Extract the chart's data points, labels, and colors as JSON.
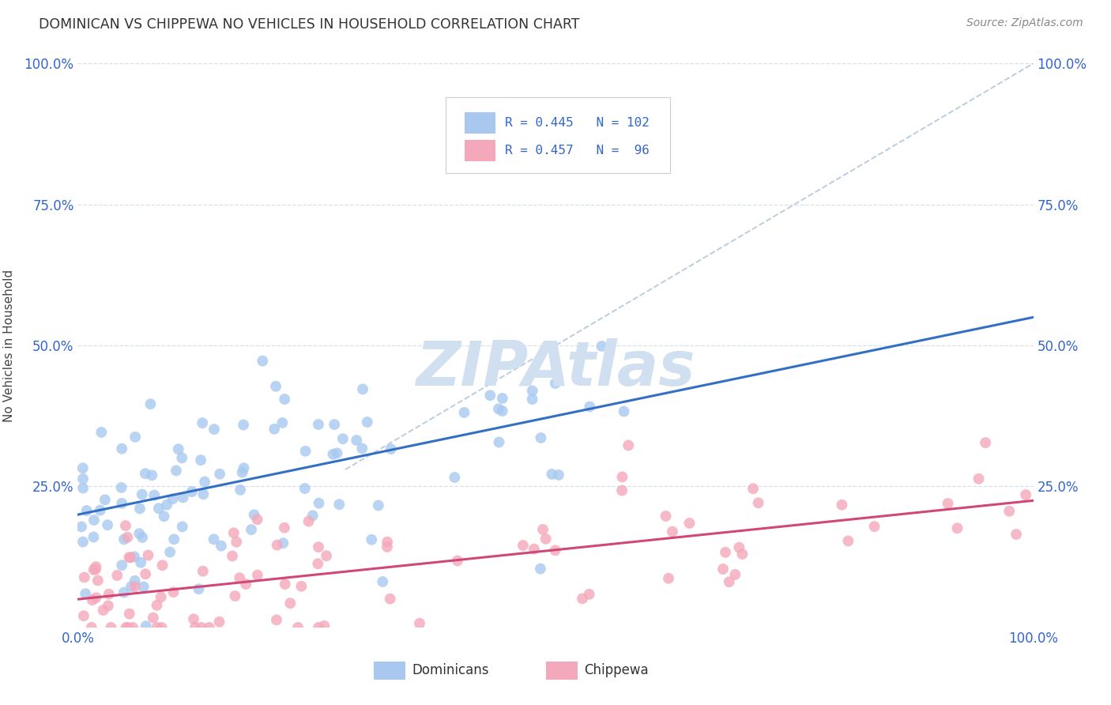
{
  "title": "DOMINICAN VS CHIPPEWA NO VEHICLES IN HOUSEHOLD CORRELATION CHART",
  "source": "Source: ZipAtlas.com",
  "ylabel": "No Vehicles in Household",
  "xlim": [
    0.0,
    100.0
  ],
  "ylim": [
    0.0,
    100.0
  ],
  "ytick_vals": [
    0.0,
    25.0,
    50.0,
    75.0,
    100.0
  ],
  "dominican_R": 0.445,
  "dominican_N": 102,
  "chippewa_R": 0.457,
  "chippewa_N": 96,
  "dominican_color": "#A8C8F0",
  "chippewa_color": "#F4A8BB",
  "dominican_line_color": "#3370C4",
  "chippewa_line_color": "#D04878",
  "diagonal_line_color": "#B0C4D8",
  "background_color": "#FFFFFF",
  "grid_color": "#D0DDE8",
  "title_color": "#333333",
  "legend_text_color": "#3366CC",
  "watermark_color": "#D0E0F0",
  "dominican_intercept": 20.0,
  "dominican_slope": 0.35,
  "chippewa_intercept": 5.0,
  "chippewa_slope": 0.175,
  "diag_x_start": 28.0,
  "diag_y_start": 28.0,
  "diag_x_end": 100.0,
  "diag_y_end": 100.0
}
